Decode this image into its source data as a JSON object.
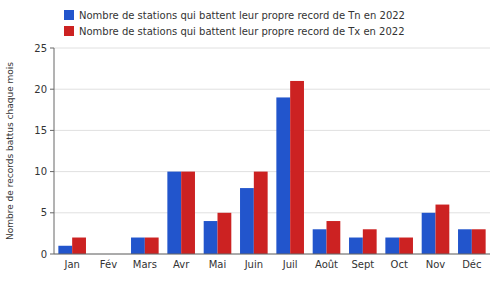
{
  "chart_data": {
    "type": "bar",
    "categories": [
      "Jan",
      "Fév",
      "Mars",
      "Avr",
      "Mai",
      "Juin",
      "Juil",
      "Août",
      "Sept",
      "Oct",
      "Nov",
      "Déc"
    ],
    "series": [
      {
        "name": "Nombre de stations qui battent leur propre record de Tn en 2022",
        "color": "#2255cc",
        "values": [
          1,
          0,
          2,
          10,
          4,
          8,
          19,
          3,
          2,
          2,
          5,
          3
        ]
      },
      {
        "name": "Nombre de stations qui battent leur propre record de Tx en 2022",
        "color": "#cc2222",
        "values": [
          2,
          0,
          2,
          10,
          5,
          10,
          21,
          4,
          3,
          2,
          6,
          3
        ]
      }
    ],
    "y_label": "Nombre de records battus chaque mois",
    "ylim": [
      0,
      25
    ],
    "yticks": [
      0,
      5,
      10,
      15,
      20,
      25
    ],
    "grid": true,
    "legend": "top"
  }
}
